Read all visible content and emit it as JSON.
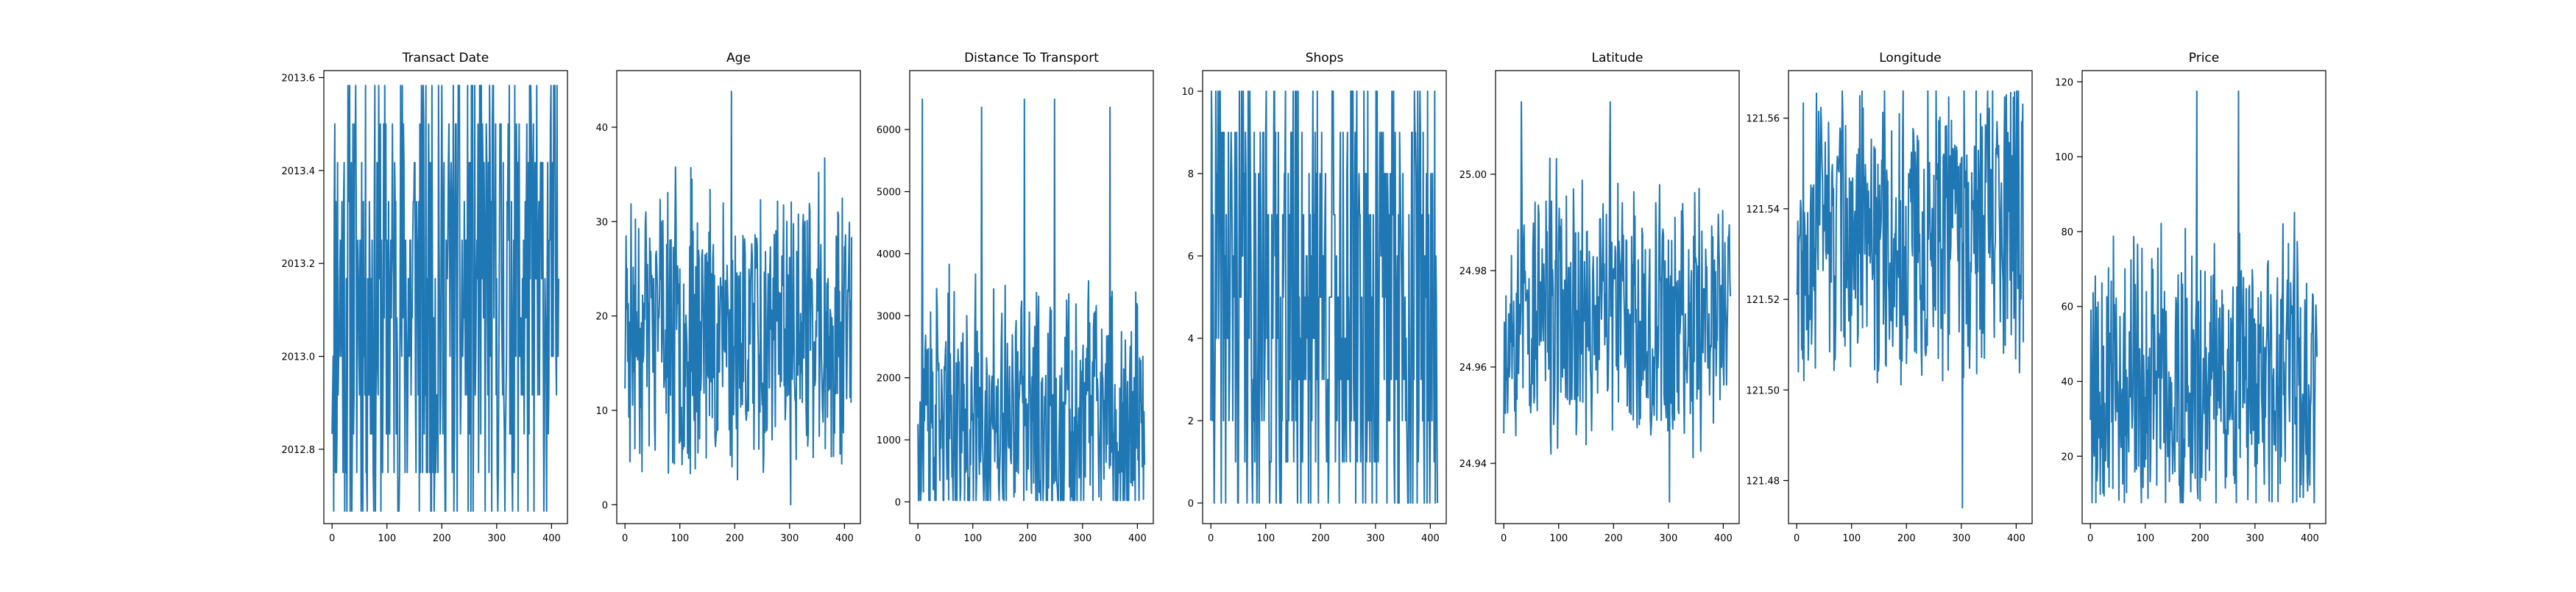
{
  "figure": {
    "background": "#ffffff",
    "line_color": "#1f77b4"
  },
  "chart_data": [
    {
      "type": "line",
      "title": "Transact Date",
      "xlabel": "",
      "ylabel": "",
      "xlim": [
        -15,
        429
      ],
      "ylim": [
        2012.64,
        2013.615
      ],
      "xticks": [
        0,
        100,
        200,
        300,
        400
      ],
      "xtick_labels": [
        "0",
        "100",
        "200",
        "300",
        "400"
      ],
      "yticks": [
        2012.8,
        2013.0,
        2013.2,
        2013.4,
        2013.6
      ],
      "ytick_labels": [
        "2012.8",
        "2013.0",
        "2013.2",
        "2013.4",
        "2013.6"
      ],
      "series": [
        {
          "name": "Transact Date",
          "x_start": 0,
          "x_end": 413,
          "min": 2012.667,
          "max": 2013.583,
          "mean": 2013.15,
          "trend": 0,
          "spike_indices": [],
          "levels": [
            2012.667,
            2012.75,
            2012.833,
            2012.917,
            2013.0,
            2013.083,
            2013.167,
            2013.25,
            2013.333,
            2013.417,
            2013.5,
            2013.583
          ],
          "seed": 11
        }
      ],
      "grid": false,
      "legend": false
    },
    {
      "type": "line",
      "title": "Age",
      "xlabel": "",
      "ylabel": "",
      "xlim": [
        -15,
        429
      ],
      "ylim": [
        -2,
        46
      ],
      "xticks": [
        0,
        100,
        200,
        300,
        400
      ],
      "xtick_labels": [
        "0",
        "100",
        "200",
        "300",
        "400"
      ],
      "yticks": [
        0,
        10,
        20,
        30,
        40
      ],
      "ytick_labels": [
        "0",
        "10",
        "20",
        "30",
        "40"
      ],
      "series": [
        {
          "name": "Age",
          "x_start": 0,
          "x_end": 413,
          "min": 0,
          "max": 43.8,
          "mean": 17.7,
          "trend": 0,
          "spike_indices": [],
          "levels": [],
          "seed": 23
        }
      ],
      "grid": false,
      "legend": false
    },
    {
      "type": "line",
      "title": "Distance To Transport",
      "xlabel": "",
      "ylabel": "",
      "xlim": [
        -15,
        429
      ],
      "ylim": [
        -350,
        6950
      ],
      "xticks": [
        0,
        100,
        200,
        300,
        400
      ],
      "xtick_labels": [
        "0",
        "100",
        "200",
        "300",
        "400"
      ],
      "yticks": [
        0,
        1000,
        2000,
        3000,
        4000,
        5000,
        6000
      ],
      "ytick_labels": [
        "0",
        "1000",
        "2000",
        "3000",
        "4000",
        "5000",
        "6000"
      ],
      "series": [
        {
          "name": "Distance To Transport",
          "x_start": 0,
          "x_end": 413,
          "min": 23.4,
          "max": 6488,
          "mean": 1083.9,
          "trend": 0,
          "spike_indices": [
            8,
            116,
            249,
            350
          ],
          "levels": [],
          "seed": 37
        }
      ],
      "grid": false,
      "legend": false
    },
    {
      "type": "line",
      "title": "Shops",
      "xlabel": "",
      "ylabel": "",
      "xlim": [
        -15,
        429
      ],
      "ylim": [
        -0.5,
        10.5
      ],
      "xticks": [
        0,
        100,
        200,
        300,
        400
      ],
      "xtick_labels": [
        "0",
        "100",
        "200",
        "300",
        "400"
      ],
      "yticks": [
        0,
        2,
        4,
        6,
        8,
        10
      ],
      "ytick_labels": [
        "0",
        "2",
        "4",
        "6",
        "8",
        "10"
      ],
      "series": [
        {
          "name": "Shops",
          "x_start": 0,
          "x_end": 413,
          "min": 0,
          "max": 10,
          "mean": 4.1,
          "trend": 0,
          "spike_indices": [],
          "levels": [
            0,
            1,
            2,
            3,
            4,
            5,
            6,
            7,
            8,
            9,
            10
          ],
          "seed": 41
        }
      ],
      "grid": false,
      "legend": false
    },
    {
      "type": "line",
      "title": "Latitude",
      "xlabel": "",
      "ylabel": "",
      "xlim": [
        -15,
        429
      ],
      "ylim": [
        24.9275,
        25.0215
      ],
      "xticks": [
        0,
        100,
        200,
        300,
        400
      ],
      "xtick_labels": [
        "0",
        "100",
        "200",
        "300",
        "400"
      ],
      "yticks": [
        24.94,
        24.96,
        24.98,
        25.0
      ],
      "ytick_labels": [
        "24.94",
        "24.96",
        "24.98",
        "25.00"
      ],
      "series": [
        {
          "name": "Latitude",
          "x_start": 0,
          "x_end": 413,
          "min": 24.932,
          "max": 25.015,
          "mean": 24.969,
          "trend": 0,
          "spike_indices": [
            32
          ],
          "levels": [],
          "seed": 53
        }
      ],
      "grid": false,
      "legend": false
    },
    {
      "type": "line",
      "title": "Longitude",
      "xlabel": "",
      "ylabel": "",
      "xlim": [
        -15,
        429
      ],
      "ylim": [
        121.4705,
        121.5705
      ],
      "xticks": [
        0,
        100,
        200,
        300,
        400
      ],
      "xtick_labels": [
        "0",
        "100",
        "200",
        "300",
        "400"
      ],
      "yticks": [
        121.48,
        121.5,
        121.52,
        121.54,
        121.56
      ],
      "ytick_labels": [
        "121.48",
        "121.50",
        "121.52",
        "121.54",
        "121.56"
      ],
      "series": [
        {
          "name": "Longitude",
          "x_start": 0,
          "x_end": 413,
          "min": 121.474,
          "max": 121.566,
          "mean": 121.533,
          "trend": 0,
          "spike_indices": [],
          "levels": [],
          "seed": 67
        }
      ],
      "grid": false,
      "legend": false
    },
    {
      "type": "line",
      "title": "Price",
      "xlabel": "",
      "ylabel": "",
      "xlim": [
        -15,
        429
      ],
      "ylim": [
        2,
        123
      ],
      "xticks": [
        0,
        100,
        200,
        300,
        400
      ],
      "xtick_labels": [
        "0",
        "100",
        "200",
        "300",
        "400"
      ],
      "yticks": [
        20,
        40,
        60,
        80,
        100,
        120
      ],
      "ytick_labels": [
        "20",
        "40",
        "60",
        "80",
        "100",
        "120"
      ],
      "series": [
        {
          "name": "Price",
          "x_start": 0,
          "x_end": 413,
          "min": 7.6,
          "max": 117.5,
          "mean": 38.0,
          "trend": 0,
          "spike_indices": [
            270
          ],
          "levels": [],
          "seed": 79
        }
      ],
      "grid": false,
      "legend": false
    }
  ]
}
